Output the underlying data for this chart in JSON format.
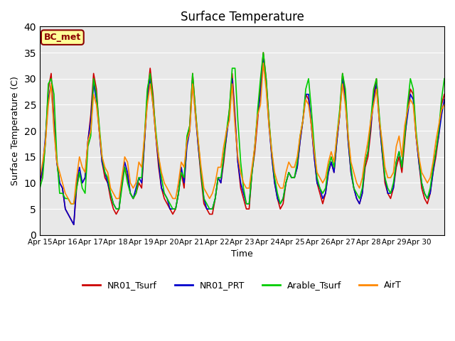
{
  "title": "Surface Temperature",
  "ylabel": "Surface Temperature (C)",
  "xlabel": "Time",
  "ylim": [
    0,
    40
  ],
  "yticks": [
    0,
    5,
    10,
    15,
    20,
    25,
    30,
    35,
    40
  ],
  "bg_color": "#e8e8e8",
  "annotation_text": "BC_met",
  "annotation_bg": "#ffff99",
  "annotation_border": "#8b0000",
  "legend": [
    "NR01_Tsurf",
    "NR01_PRT",
    "Arable_Tsurf",
    "AirT"
  ],
  "line_colors": [
    "#cc0000",
    "#0000cc",
    "#00cc00",
    "#ff8800"
  ],
  "dates": [
    "Apr 15",
    "Apr 16",
    "Apr 17",
    "Apr 18",
    "Apr 19",
    "Apr 20",
    "Apr 21",
    "Apr 22",
    "Apr 23",
    "Apr 24",
    "Apr 25",
    "Apr 26",
    "Apr 27",
    "Apr 28",
    "Apr 29",
    "Apr 30"
  ],
  "NR01_Tsurf": [
    10,
    12,
    18,
    28,
    31,
    22,
    14,
    10,
    9,
    5,
    4,
    3,
    2,
    9,
    12,
    10,
    11,
    18,
    23,
    31,
    28,
    20,
    14,
    11,
    10,
    7,
    5,
    4,
    5,
    10,
    13,
    11,
    8,
    7,
    8,
    10,
    9,
    18,
    27,
    32,
    27,
    19,
    13,
    9,
    7,
    6,
    5,
    4,
    5,
    8,
    12,
    9,
    18,
    21,
    31,
    24,
    17,
    11,
    6,
    5,
    4,
    4,
    7,
    11,
    10,
    14,
    19,
    24,
    31,
    23,
    14,
    9,
    7,
    5,
    5,
    12,
    16,
    22,
    29,
    35,
    30,
    22,
    15,
    10,
    7,
    5,
    6,
    10,
    12,
    11,
    11,
    13,
    18,
    22,
    27,
    26,
    21,
    15,
    10,
    8,
    6,
    8,
    12,
    14,
    12,
    18,
    23,
    31,
    27,
    18,
    12,
    9,
    7,
    6,
    8,
    13,
    15,
    20,
    27,
    30,
    22,
    16,
    10,
    8,
    7,
    9,
    13,
    15,
    12,
    18,
    24,
    28,
    27,
    19,
    14,
    9,
    7,
    6,
    8,
    12,
    15,
    19,
    25,
    27
  ],
  "NR01_PRT": [
    10,
    13,
    19,
    26,
    29,
    21,
    14,
    10,
    9,
    5,
    4,
    3,
    2,
    10,
    13,
    10,
    11,
    18,
    22,
    29,
    26,
    20,
    14,
    12,
    10,
    8,
    6,
    5,
    5,
    10,
    14,
    12,
    8,
    7,
    9,
    11,
    10,
    18,
    26,
    30,
    25,
    19,
    14,
    9,
    8,
    7,
    5,
    5,
    5,
    8,
    13,
    10,
    17,
    20,
    30,
    23,
    17,
    12,
    7,
    5,
    5,
    5,
    7,
    11,
    10,
    15,
    19,
    23,
    30,
    22,
    14,
    10,
    8,
    6,
    6,
    12,
    17,
    23,
    27,
    34,
    29,
    21,
    15,
    10,
    7,
    6,
    7,
    10,
    12,
    11,
    11,
    13,
    18,
    22,
    27,
    27,
    21,
    15,
    10,
    9,
    7,
    8,
    12,
    14,
    12,
    18,
    23,
    30,
    26,
    18,
    12,
    9,
    7,
    6,
    8,
    14,
    16,
    21,
    26,
    29,
    22,
    16,
    11,
    8,
    8,
    9,
    14,
    16,
    13,
    19,
    23,
    27,
    26,
    19,
    14,
    10,
    8,
    7,
    8,
    12,
    16,
    19,
    23,
    26
  ],
  "Arable_Tsurf": [
    9,
    11,
    18,
    29,
    30,
    27,
    15,
    8,
    8,
    7,
    7,
    6,
    6,
    9,
    12,
    9,
    8,
    17,
    19,
    30,
    27,
    21,
    15,
    12,
    11,
    8,
    6,
    5,
    5,
    9,
    13,
    10,
    8,
    7,
    8,
    11,
    11,
    19,
    28,
    31,
    26,
    20,
    15,
    11,
    8,
    7,
    6,
    5,
    5,
    8,
    12,
    11,
    19,
    21,
    31,
    24,
    18,
    12,
    7,
    6,
    5,
    5,
    7,
    11,
    11,
    15,
    20,
    24,
    32,
    32,
    22,
    14,
    9,
    6,
    6,
    12,
    17,
    24,
    30,
    35,
    30,
    22,
    16,
    11,
    8,
    6,
    7,
    10,
    12,
    11,
    11,
    14,
    19,
    22,
    28,
    30,
    24,
    17,
    11,
    9,
    8,
    9,
    13,
    15,
    13,
    19,
    24,
    31,
    28,
    19,
    13,
    9,
    8,
    7,
    9,
    14,
    16,
    22,
    28,
    30,
    23,
    17,
    11,
    9,
    8,
    10,
    14,
    16,
    13,
    19,
    25,
    30,
    28,
    20,
    15,
    10,
    8,
    7,
    9,
    13,
    16,
    20,
    26,
    30
  ],
  "AirT": [
    11,
    14,
    18,
    25,
    29,
    20,
    14,
    12,
    10,
    8,
    7,
    6,
    6,
    11,
    15,
    13,
    12,
    18,
    20,
    27,
    25,
    20,
    15,
    13,
    12,
    9,
    8,
    7,
    7,
    11,
    15,
    14,
    10,
    9,
    10,
    14,
    13,
    19,
    25,
    29,
    25,
    19,
    15,
    12,
    10,
    9,
    8,
    7,
    7,
    10,
    14,
    13,
    18,
    20,
    29,
    23,
    18,
    13,
    9,
    8,
    7,
    8,
    10,
    13,
    13,
    17,
    20,
    22,
    29,
    21,
    15,
    12,
    10,
    9,
    9,
    13,
    17,
    23,
    25,
    33,
    28,
    21,
    16,
    12,
    10,
    9,
    9,
    12,
    14,
    13,
    13,
    15,
    19,
    22,
    26,
    25,
    21,
    16,
    12,
    11,
    10,
    11,
    14,
    16,
    14,
    19,
    23,
    29,
    25,
    19,
    14,
    12,
    10,
    9,
    11,
    15,
    18,
    22,
    25,
    28,
    22,
    18,
    13,
    11,
    11,
    12,
    17,
    19,
    15,
    21,
    24,
    26,
    25,
    19,
    15,
    12,
    11,
    10,
    11,
    14,
    18,
    21,
    24,
    25
  ]
}
